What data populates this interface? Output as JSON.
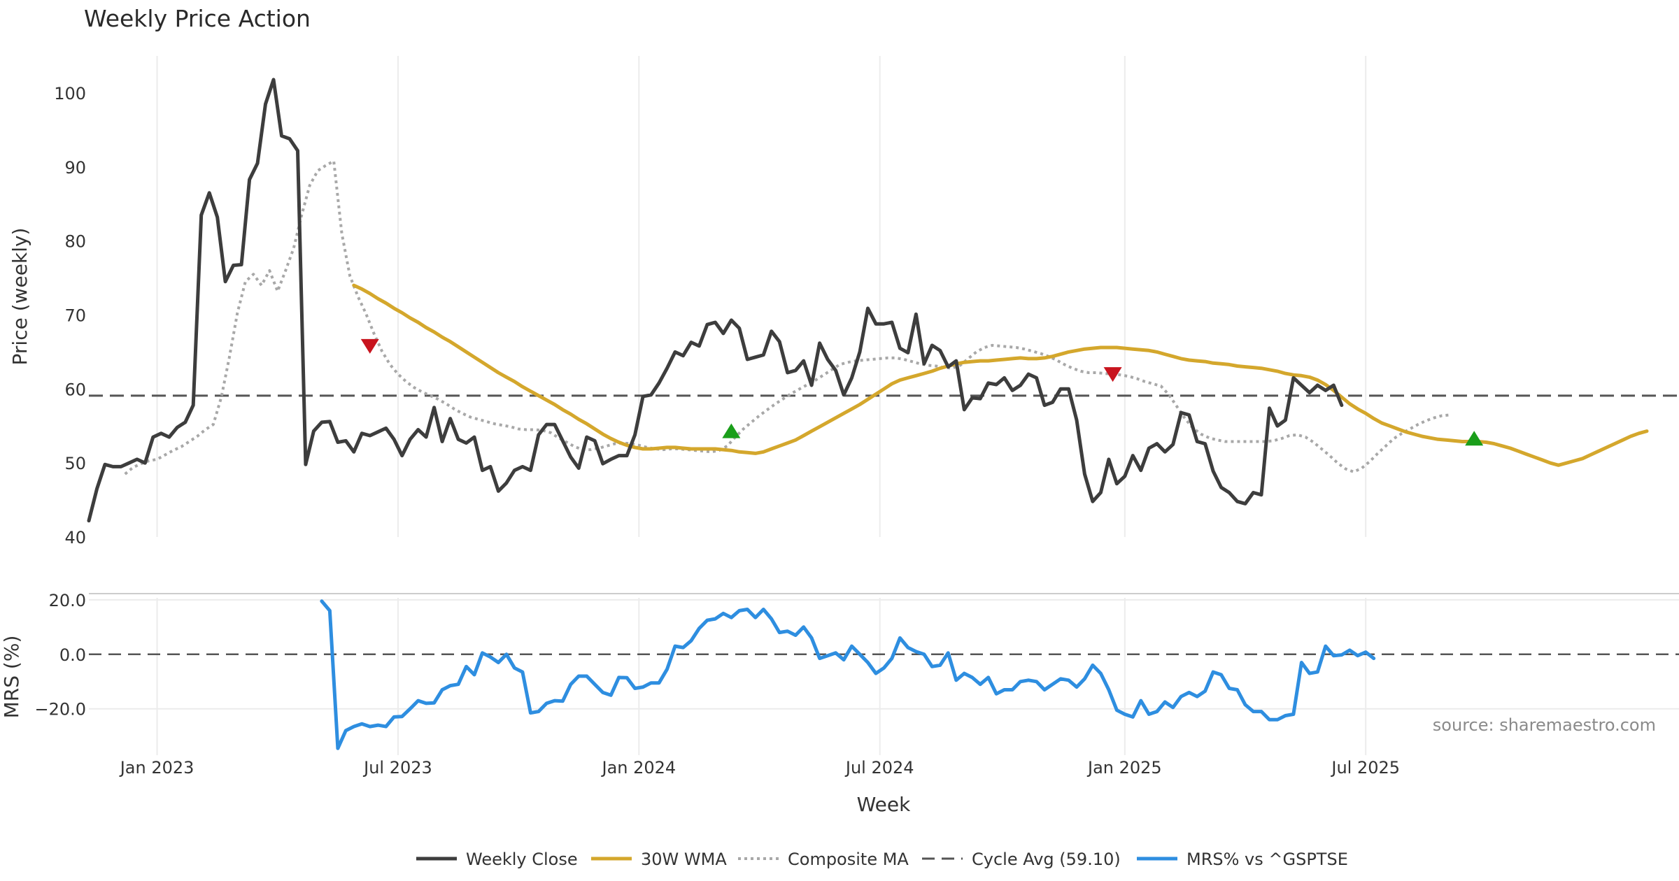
{
  "colors": {
    "close": "#3d3d3d",
    "wma": "#d4a72c",
    "composite": "#a8a8a8",
    "cycle": "#555555",
    "mrs": "#2e8ee0",
    "up_marker": "#1a9e1a",
    "down_marker": "#c8141e",
    "grid": "#ececec"
  },
  "chart_data": [
    {
      "type": "line",
      "title": "Weekly Price Action",
      "ylabel": "Price (weekly)",
      "ylim": [
        40,
        105
      ],
      "yticks": [
        40,
        50,
        60,
        70,
        80,
        90,
        100
      ],
      "xlim": [
        0,
        194
      ],
      "x_ticks": [
        {
          "x": 8.5,
          "label": "Jan 2023"
        },
        {
          "x": 38.5,
          "label": "Jul 2023"
        },
        {
          "x": 68.5,
          "label": "Jan 2024"
        },
        {
          "x": 98.5,
          "label": "Jul 2024"
        },
        {
          "x": 129,
          "label": "Jan 2025"
        },
        {
          "x": 159,
          "label": "Jul 2025"
        }
      ],
      "cycle_avg": 59.1,
      "series": [
        {
          "name": "Weekly Close",
          "start_x": 0,
          "values": [
            42.2,
            46.5,
            49.8,
            49.5,
            49.5,
            50.0,
            50.5,
            50.0,
            53.5,
            54.0,
            53.5,
            54.8,
            55.5,
            57.8,
            83.5,
            86.5,
            83.2,
            74.5,
            76.7,
            76.8,
            88.3,
            90.5,
            98.5,
            101.8,
            94.2,
            93.8,
            92.2,
            49.8,
            54.3,
            55.5,
            55.6,
            52.8,
            53.0,
            51.5,
            54.0,
            53.7,
            54.2,
            54.7,
            53.2,
            51.0,
            53.2,
            54.5,
            53.5,
            57.5,
            52.9,
            56.0,
            53.2,
            52.7,
            53.5,
            49.0,
            49.5,
            46.2,
            47.3,
            49.0,
            49.5,
            49.0,
            53.8,
            55.2,
            55.2,
            53.0,
            50.8,
            49.3,
            53.5,
            53.0,
            49.9,
            50.5,
            51.0,
            51.0,
            53.8,
            59.0,
            59.2,
            60.8,
            62.8,
            65.0,
            64.5,
            66.3,
            65.8,
            68.7,
            69.0,
            67.5,
            69.3,
            68.2,
            64.0,
            64.3,
            64.6,
            67.8,
            66.4,
            62.2,
            62.5,
            63.8,
            60.5,
            66.2,
            64.0,
            62.5,
            59.2,
            61.5,
            65.0,
            70.9,
            68.8,
            68.8,
            69.0,
            65.5,
            64.9,
            70.1,
            63.4,
            65.9,
            65.2,
            63.0,
            63.8,
            57.2,
            58.8,
            58.7,
            60.8,
            60.6,
            61.5,
            59.8,
            60.5,
            62.0,
            61.5,
            57.8,
            58.2,
            60.0,
            60.0,
            55.8,
            48.5,
            44.8,
            46.0,
            50.5,
            47.2,
            48.2,
            51.0,
            49.0,
            52.0,
            52.6,
            51.5,
            52.5,
            56.8,
            56.5,
            52.9,
            52.6,
            48.9,
            46.7,
            46.0,
            44.8,
            44.5,
            46.0,
            45.7,
            57.4,
            55.0,
            55.8,
            61.5,
            60.5,
            59.5,
            60.5,
            59.8,
            60.5,
            57.8
          ]
        },
        {
          "name": "30W WMA",
          "start_x": 33,
          "values": [
            74.0,
            73.5,
            72.9,
            72.2,
            71.6,
            70.9,
            70.3,
            69.6,
            69.0,
            68.3,
            67.7,
            67.0,
            66.4,
            65.7,
            65.0,
            64.3,
            63.6,
            62.9,
            62.2,
            61.6,
            61.0,
            60.3,
            59.7,
            59.1,
            58.5,
            57.9,
            57.2,
            56.6,
            55.9,
            55.3,
            54.6,
            53.9,
            53.3,
            52.8,
            52.4,
            52.1,
            51.9,
            51.9,
            52.0,
            52.1,
            52.1,
            52.0,
            51.9,
            51.9,
            51.9,
            51.9,
            51.8,
            51.7,
            51.5,
            51.4,
            51.3,
            51.5,
            51.9,
            52.3,
            52.7,
            53.1,
            53.7,
            54.3,
            54.9,
            55.5,
            56.1,
            56.7,
            57.3,
            57.9,
            58.6,
            59.3,
            60.0,
            60.7,
            61.2,
            61.5,
            61.8,
            62.1,
            62.4,
            62.8,
            63.1,
            63.4,
            63.6,
            63.7,
            63.8,
            63.8,
            63.9,
            64.0,
            64.1,
            64.2,
            64.1,
            64.1,
            64.2,
            64.4,
            64.7,
            65.0,
            65.2,
            65.4,
            65.5,
            65.6,
            65.6,
            65.6,
            65.5,
            65.4,
            65.3,
            65.2,
            65.0,
            64.7,
            64.4,
            64.1,
            63.9,
            63.8,
            63.7,
            63.5,
            63.4,
            63.3,
            63.1,
            63.0,
            62.9,
            62.8,
            62.6,
            62.4,
            62.1,
            61.9,
            61.8,
            61.6,
            61.2,
            60.6,
            59.8,
            58.9,
            58.0,
            57.3,
            56.7,
            56.0,
            55.4,
            55.0,
            54.6,
            54.2,
            53.9,
            53.6,
            53.4,
            53.2,
            53.1,
            53.0,
            52.9,
            52.9,
            52.9,
            52.8,
            52.6,
            52.3,
            52.0,
            51.6,
            51.2,
            50.8,
            50.4,
            50.0,
            49.7,
            50.0,
            50.3,
            50.6,
            51.1,
            51.6,
            52.1,
            52.6,
            53.1,
            53.6,
            54.0,
            54.3
          ]
        },
        {
          "name": "Composite MA",
          "start_x": 4.5,
          "values": [
            48.5,
            49.4,
            49.9,
            50.3,
            50.5,
            51.1,
            51.7,
            52.2,
            52.9,
            53.6,
            54.5,
            55.2,
            58.9,
            64.3,
            70.3,
            74.5,
            75.5,
            74.0,
            76.0,
            73.2,
            76.0,
            79.0,
            83.5,
            87.5,
            89.5,
            90.2,
            90.8,
            81.0,
            75.3,
            72.5,
            70.2,
            67.5,
            65.1,
            63.3,
            62.0,
            61.0,
            60.2,
            59.6,
            59.1,
            58.6,
            58.0,
            57.3,
            56.7,
            56.2,
            55.9,
            55.6,
            55.3,
            55.1,
            54.9,
            54.6,
            54.5,
            54.5,
            54.4,
            54.1,
            53.4,
            52.8,
            52.2,
            51.8,
            51.8,
            52.0,
            52.3,
            52.6,
            52.7,
            52.6,
            52.4,
            52.1,
            51.9,
            51.8,
            51.9,
            51.9,
            51.8,
            51.7,
            51.6,
            51.5,
            51.7,
            52.3,
            53.5,
            54.6,
            55.5,
            56.4,
            57.2,
            58.0,
            58.7,
            59.4,
            60.0,
            60.6,
            61.2,
            61.9,
            62.6,
            63.3,
            63.6,
            63.8,
            63.9,
            64.0,
            64.1,
            64.2,
            64.2,
            64.0,
            63.7,
            63.4,
            63.2,
            63.1,
            62.9,
            62.8,
            63.2,
            64.1,
            65.0,
            65.6,
            65.9,
            65.8,
            65.7,
            65.6,
            65.4,
            65.1,
            64.8,
            64.4,
            63.9,
            63.3,
            62.8,
            62.4,
            62.2,
            62.2,
            62.1,
            62.0,
            61.9,
            61.7,
            61.4,
            61.0,
            60.7,
            60.4,
            59.2,
            57.6,
            56.0,
            54.7,
            53.9,
            53.4,
            53.1,
            52.9,
            52.9,
            52.9,
            52.9,
            52.9,
            52.9,
            53.0,
            53.3,
            53.7,
            53.8,
            53.5,
            52.8,
            51.9,
            51.0,
            50.0,
            49.2,
            48.8,
            49.3,
            50.2,
            51.3,
            52.3,
            53.3,
            54.0,
            54.6,
            55.2,
            55.7,
            56.1,
            56.4,
            56.5
          ]
        }
      ],
      "markers": [
        {
          "type": "down",
          "x": 35,
          "y": 65.8
        },
        {
          "type": "up",
          "x": 80,
          "y": 54.3
        },
        {
          "type": "down",
          "x": 127.5,
          "y": 62.0
        },
        {
          "type": "up",
          "x": 172.5,
          "y": 53.3
        }
      ]
    },
    {
      "type": "line",
      "ylabel": "MRS (%)",
      "xlabel": "Week",
      "ylim": [
        -37,
        21.5
      ],
      "yticks": [
        20,
        0,
        -20
      ],
      "ytick_labels": [
        "20.0",
        "0.0",
        "−20.0"
      ],
      "series": [
        {
          "name": "MRS% vs ^GSPTSE",
          "start_x": 29,
          "values": [
            19.5,
            16.0,
            -34.5,
            -28.0,
            -26.5,
            -25.5,
            -26.5,
            -26.0,
            -26.5,
            -23.0,
            -22.8,
            -20.0,
            -17.0,
            -18.0,
            -17.8,
            -13.0,
            -11.5,
            -11.0,
            -4.5,
            -7.5,
            0.5,
            -1.0,
            -3.0,
            0.0,
            -5.0,
            -6.5,
            -21.5,
            -21.0,
            -18.0,
            -17.0,
            -17.2,
            -11.0,
            -8.0,
            -8.0,
            -11.0,
            -14.0,
            -15.0,
            -8.5,
            -8.6,
            -12.5,
            -12.0,
            -10.5,
            -10.5,
            -5.5,
            3.0,
            2.5,
            5.0,
            9.5,
            12.5,
            13.0,
            15.0,
            13.5,
            16.0,
            16.5,
            13.5,
            16.5,
            13.0,
            8.0,
            8.5,
            7.0,
            10.0,
            6.0,
            -1.5,
            -0.5,
            0.5,
            -2.0,
            3.0,
            0.0,
            -3.0,
            -7.0,
            -5.0,
            -1.5,
            6.0,
            2.5,
            1.0,
            0.0,
            -4.5,
            -4.0,
            0.5,
            -9.5,
            -7.0,
            -8.5,
            -11.0,
            -8.5,
            -14.5,
            -13.0,
            -13.0,
            -10.0,
            -9.5,
            -10.0,
            -13.0,
            -11.0,
            -9.0,
            -9.5,
            -12.0,
            -9.0,
            -4.0,
            -7.0,
            -13.0,
            -20.5,
            -22.0,
            -23.0,
            -17.0,
            -22.0,
            -21.0,
            -17.5,
            -19.5,
            -15.5,
            -14.0,
            -15.5,
            -13.5,
            -6.5,
            -7.5,
            -12.5,
            -13.0,
            -18.5,
            -21.0,
            -21.0,
            -24.0,
            -24.0,
            -22.5,
            -22.0,
            -3.0,
            -7.0,
            -6.5,
            3.0,
            -0.5,
            -0.2,
            1.5,
            -0.5,
            0.8,
            -1.5
          ]
        }
      ],
      "source_note": "source: sharemaestro.com"
    }
  ],
  "legend": [
    {
      "label": "Weekly Close",
      "style": "solid",
      "color": "#3d3d3d"
    },
    {
      "label": "30W WMA",
      "style": "solid",
      "color": "#d4a72c"
    },
    {
      "label": "Composite MA",
      "style": "dotted",
      "color": "#a8a8a8"
    },
    {
      "label": "Cycle Avg (59.10)",
      "style": "dashed",
      "color": "#555555"
    },
    {
      "label": "MRS% vs ^GSPTSE",
      "style": "solid",
      "color": "#2e8ee0"
    }
  ]
}
